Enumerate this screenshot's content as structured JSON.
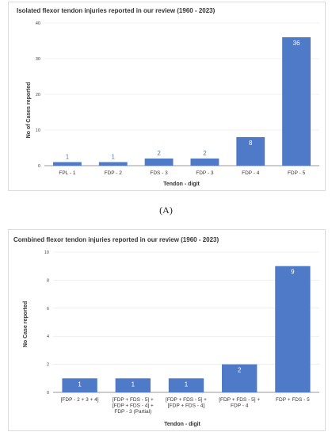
{
  "caption_a": "(A)",
  "chart_data": [
    {
      "type": "bar",
      "title": "Isolated flexor tendon injuries reported in our review (1960 - 2023)",
      "xlabel": "Tendon - digit",
      "ylabel": "No of Cases reported",
      "categories": [
        "FPL - 1",
        "FDP - 2",
        "FDS - 3",
        "FDP - 3",
        "FDP - 4",
        "FDP - 5"
      ],
      "values": [
        1,
        1,
        2,
        2,
        8,
        36
      ],
      "ylim": [
        0,
        40
      ],
      "yticks": [
        0,
        10,
        20,
        30,
        40
      ],
      "bar_color": "#4f7ac7",
      "grid": true,
      "legend": "none"
    },
    {
      "type": "bar",
      "title": "Combined flexor tendon injuries reported in our review (1960 - 2023)",
      "xlabel": "Tendon - digit",
      "ylabel": "No Case reported",
      "categories": [
        [
          "[FDP - 2 + 3 + 4]"
        ],
        [
          "[FDP + FDS - 5] +",
          "[FDP + FDS - 4] +",
          "FDP - 3 (Partial)"
        ],
        [
          "[FDP + FDS - 5] +",
          "[FDP + FDS - 4]"
        ],
        [
          "[FDP + FDS - 5] +",
          "FDP - 4"
        ],
        [
          "FDP + FDS - 5"
        ]
      ],
      "values": [
        1,
        1,
        1,
        2,
        9
      ],
      "ylim": [
        0,
        10
      ],
      "yticks": [
        0,
        2,
        4,
        6,
        8,
        10
      ],
      "bar_color": "#4f7ac7",
      "grid": true,
      "legend": "none"
    }
  ]
}
